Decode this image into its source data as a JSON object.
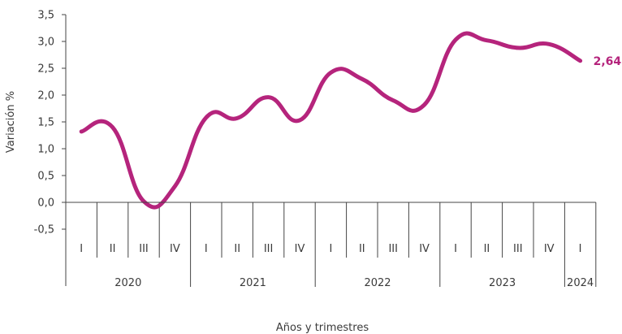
{
  "chart_data": {
    "type": "line",
    "xlabel": "Años y trimestres",
    "ylabel": "Variación %",
    "ylim": [
      -0.5,
      3.5
    ],
    "yticks": [
      "3,5",
      "3,0",
      "2,5",
      "2,0",
      "1,5",
      "1,0",
      "0,5",
      "0,0",
      "-0,5"
    ],
    "ytick_values": [
      3.5,
      3.0,
      2.5,
      2.0,
      1.5,
      1.0,
      0.5,
      0.0,
      -0.5
    ],
    "quarters": [
      "I",
      "II",
      "III",
      "IV",
      "I",
      "II",
      "III",
      "IV",
      "I",
      "II",
      "III",
      "IV",
      "I",
      "II",
      "III",
      "IV",
      "I"
    ],
    "years": [
      "2020",
      "2021",
      "2022",
      "2023",
      "2024"
    ],
    "year_quarter_counts": [
      4,
      4,
      4,
      4,
      1
    ],
    "series": [
      {
        "values": [
          1.32,
          1.4,
          0.02,
          0.3,
          1.58,
          1.57,
          1.96,
          1.53,
          2.42,
          2.3,
          1.9,
          1.82,
          3.03,
          3.02,
          2.88,
          2.95,
          2.64
        ]
      }
    ],
    "line_color": "#b5247c",
    "end_label": "2,64",
    "grid": false
  }
}
